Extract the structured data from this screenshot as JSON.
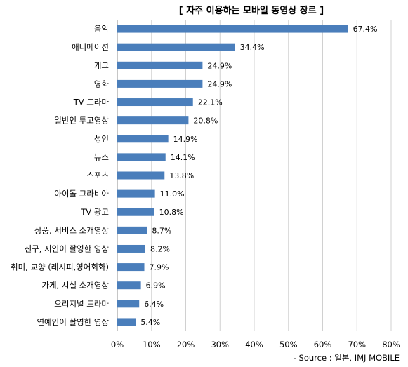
{
  "chart_data": {
    "type": "bar",
    "orientation": "horizontal",
    "title": "[ 자주 이용하는 모바일 동영상 장르 ]",
    "categories": [
      "음악",
      "애니메이션",
      "개그",
      "영화",
      "TV 드라마",
      "일반인 투고영상",
      "성인",
      "뉴스",
      "스포츠",
      "아이돌 그라비아",
      "TV 광고",
      "상품, 서비스 소개영상",
      "친구, 지인이 촬영한 영상",
      "취미, 교양 (레시피,영어회화)",
      "가게, 시설 소개영상",
      "오리지널 드라마",
      "연예인이 촬영한 영상"
    ],
    "values": [
      67.4,
      34.4,
      24.9,
      24.9,
      22.1,
      20.8,
      14.9,
      14.1,
      13.8,
      11.0,
      10.8,
      8.7,
      8.2,
      7.9,
      6.9,
      6.4,
      5.4
    ],
    "value_labels": [
      "67.4%",
      "34.4%",
      "24.9%",
      "24.9%",
      "22.1%",
      "20.8%",
      "14.9%",
      "14.1%",
      "13.8%",
      "11.0%",
      "10.8%",
      "8.7%",
      "8.2%",
      "7.9%",
      "6.9%",
      "6.4%",
      "5.4%"
    ],
    "xlim": [
      0,
      80
    ],
    "xticks": [
      "0%",
      "10%",
      "20%",
      "30%",
      "40%",
      "50%",
      "60%",
      "70%",
      "80%"
    ],
    "grid": true,
    "bar_color": "#4A7EBB",
    "source": "- Source : 일본, IMJ MOBILE"
  }
}
